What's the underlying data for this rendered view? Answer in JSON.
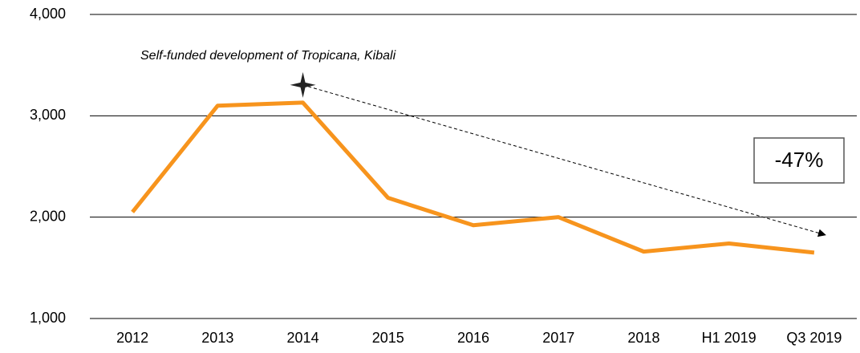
{
  "chart_data": {
    "type": "line",
    "categories": [
      "2012",
      "2013",
      "2014",
      "2015",
      "2016",
      "2017",
      "2018",
      "H1 2019",
      "Q3 2019"
    ],
    "series": [
      {
        "color": "#f7941d",
        "values": [
          2050,
          3100,
          3130,
          2190,
          1920,
          2000,
          1660,
          1740,
          1650
        ]
      }
    ],
    "ylim": [
      1000,
      4000
    ],
    "yticks": [
      {
        "value": 1000,
        "label": "1,000"
      },
      {
        "value": 2000,
        "label": "2,000"
      },
      {
        "value": 3000,
        "label": "3,000"
      },
      {
        "value": 4000,
        "label": "4,000"
      }
    ],
    "grid": true,
    "annotations": [
      "Self-funded development of Tropicana, Kibali",
      "-47%"
    ]
  }
}
